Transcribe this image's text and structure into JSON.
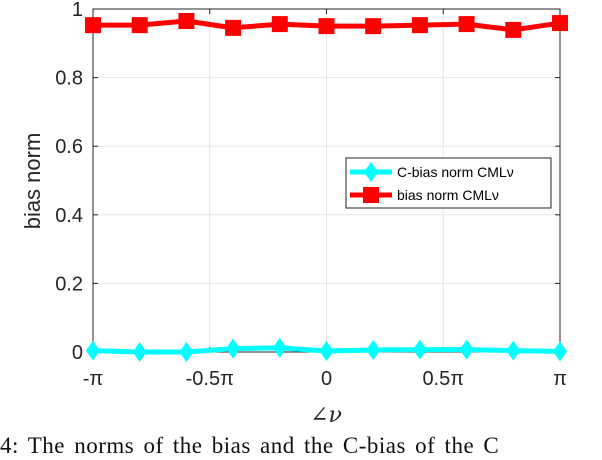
{
  "chart_data": {
    "type": "line",
    "x": [
      -1,
      -0.8,
      -0.6,
      -0.4,
      -0.2,
      0,
      0.2,
      0.4,
      0.6,
      0.8,
      1
    ],
    "x_unit": "π",
    "xlabel": "∠ν",
    "ylabel": "bias norm",
    "xlim": [
      -1,
      1
    ],
    "ylim": [
      0,
      1
    ],
    "xticks": [
      -1,
      -0.5,
      0,
      0.5,
      1
    ],
    "xtick_labels": [
      "-π",
      "-0.5π",
      "0",
      "0.5π",
      "π"
    ],
    "yticks": [
      0,
      0.2,
      0.4,
      0.6,
      0.8,
      1
    ],
    "ytick_labels": [
      "0",
      "0.2",
      "0.4",
      "0.6",
      "0.8",
      "1"
    ],
    "grid": true,
    "legend_position": "center-right",
    "series": [
      {
        "name": "C-bias norm CMLν",
        "color": "#00FFFF",
        "marker": "diamond",
        "values": [
          0.004,
          0.0,
          0.0,
          0.01,
          0.012,
          0.003,
          0.006,
          0.007,
          0.007,
          0.004,
          0.002
        ]
      },
      {
        "name": "bias norm CMLν",
        "color": "#FF0000",
        "marker": "square",
        "values": [
          0.953,
          0.953,
          0.965,
          0.945,
          0.956,
          0.95,
          0.95,
          0.953,
          0.956,
          0.939,
          0.959
        ]
      }
    ]
  },
  "caption": "4: The norms of the bias and the C-bias of the C"
}
